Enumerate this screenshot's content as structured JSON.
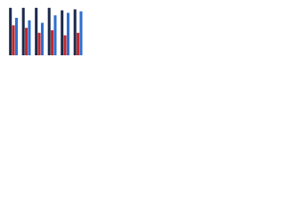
{
  "chart_data": {
    "type": "bar",
    "categories": [
      null,
      null,
      null,
      null,
      null,
      null
    ],
    "series": [
      {
        "color": "#1c2a4a",
        "values": [
          95,
          95,
          95,
          95,
          90,
          92
        ]
      },
      {
        "color": "#c1272d",
        "values": [
          60,
          55,
          45,
          50,
          40,
          45
        ]
      },
      {
        "color": "#2f6fd0",
        "values": [
          75,
          70,
          65,
          80,
          85,
          88
        ]
      }
    ],
    "ylim": [
      0,
      100
    ]
  }
}
